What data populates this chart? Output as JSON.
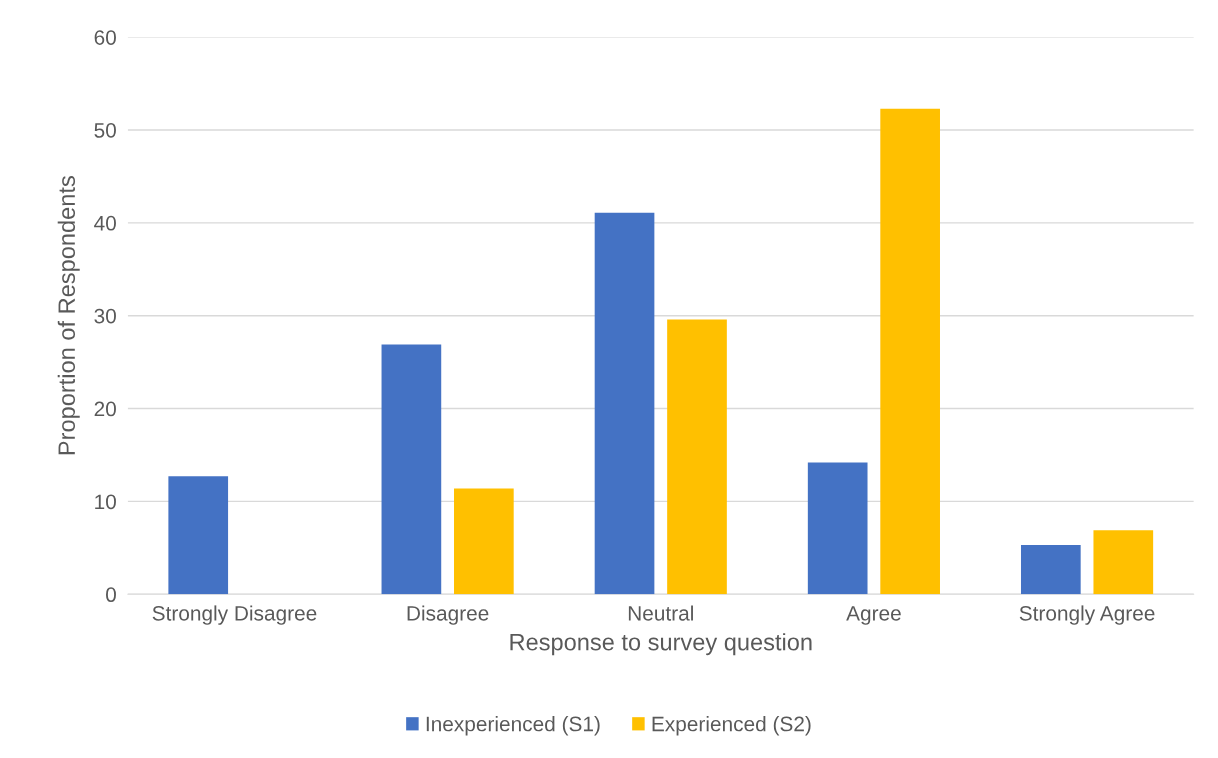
{
  "chart_data": {
    "type": "bar",
    "xlabel": "Response to survey question",
    "ylabel": "Proportion of Respondents",
    "categories": [
      "Strongly Disagree",
      "Disagree",
      "Neutral",
      "Agree",
      "Strongly Agree"
    ],
    "series": [
      {
        "name": "Inexperienced (S1)",
        "color": "#4472c4",
        "values": [
          12.7,
          26.9,
          41.1,
          14.2,
          5.3
        ]
      },
      {
        "name": "Experienced (S2)",
        "color": "#ffc000",
        "values": [
          0,
          11.4,
          29.6,
          52.3,
          6.9
        ]
      }
    ],
    "ylim": [
      0,
      60
    ],
    "yticks": [
      0,
      10,
      20,
      30,
      40,
      50,
      60
    ],
    "grid": "y",
    "legend": "bottom"
  }
}
